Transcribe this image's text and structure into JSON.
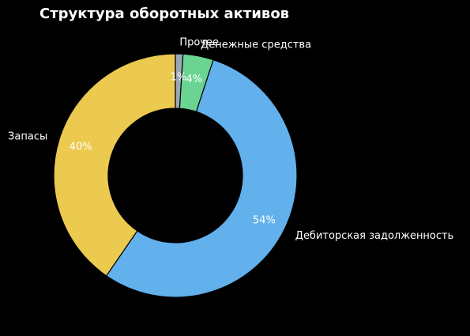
{
  "chart_data": {
    "type": "pie",
    "donut": true,
    "title": "Структура оборотных активов",
    "start_angle_deg": 90,
    "direction": "clockwise",
    "slices": [
      {
        "label": "Прочее",
        "value": 1,
        "pct_label": "1%",
        "color": "#9aa8b6"
      },
      {
        "label": "Денежные средства",
        "value": 4,
        "pct_label": "4%",
        "color": "#6bd492"
      },
      {
        "label": "Дебиторская задолженность",
        "value": 54,
        "pct_label": "54%",
        "color": "#63b1ec"
      },
      {
        "label": "Запасы",
        "value": 40,
        "pct_label": "40%",
        "color": "#ecc94f"
      }
    ],
    "legend": "none"
  }
}
